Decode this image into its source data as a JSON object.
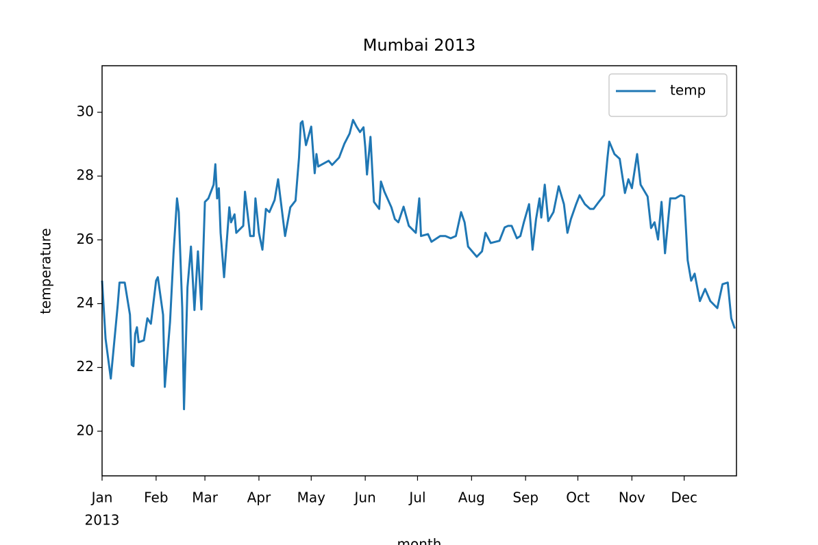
{
  "chart_data": {
    "type": "line",
    "title": "Mumbai 2013",
    "xlabel": "month",
    "ylabel": "temperature",
    "year_label": "2013",
    "x": [
      0,
      2,
      5,
      9,
      10,
      13,
      16,
      17,
      18,
      19,
      20,
      21,
      24,
      26,
      28,
      31,
      32,
      35,
      36,
      39,
      41,
      43,
      44,
      46,
      47,
      49,
      51,
      53,
      55,
      57,
      59,
      61,
      64,
      65,
      66,
      67,
      68,
      70,
      73,
      74,
      76,
      77,
      81,
      82,
      85,
      87,
      88,
      90,
      92,
      94,
      96,
      99,
      101,
      105,
      108,
      111,
      113,
      114,
      115,
      117,
      120,
      122,
      123,
      124,
      130,
      132,
      136,
      139,
      142,
      144,
      146,
      148,
      150,
      151,
      152,
      154,
      156,
      159,
      160,
      162,
      166,
      168,
      170,
      173,
      176,
      180,
      182,
      183,
      187,
      189,
      194,
      197,
      200,
      203,
      206,
      208,
      210,
      215,
      218,
      220,
      223,
      228,
      231,
      233,
      235,
      238,
      240,
      242,
      245,
      247,
      249,
      251,
      252,
      254,
      256,
      259,
      262,
      265,
      267,
      269,
      272,
      274,
      277,
      280,
      282,
      285,
      288,
      290,
      291,
      294,
      297,
      300,
      302,
      304,
      307,
      309,
      313,
      315,
      317,
      319,
      321,
      323,
      326,
      329,
      332,
      334,
      336,
      338,
      340,
      343,
      346,
      349,
      353,
      356,
      359,
      361,
      363
    ],
    "series": [
      {
        "name": "temp",
        "color": "#1f77b4",
        "values": [
          24.72,
          22.9,
          21.65,
          23.97,
          24.66,
          24.66,
          23.65,
          22.08,
          22.04,
          23.05,
          23.26,
          22.79,
          22.85,
          23.54,
          23.37,
          24.72,
          24.83,
          23.65,
          21.39,
          23.43,
          25.58,
          27.3,
          26.87,
          23.86,
          20.69,
          24.51,
          25.79,
          23.8,
          25.64,
          23.82,
          27.19,
          27.3,
          27.73,
          28.37,
          27.3,
          27.62,
          26.22,
          24.83,
          27.02,
          26.55,
          26.8,
          26.22,
          26.44,
          27.51,
          26.12,
          26.12,
          27.3,
          26.22,
          25.69,
          26.97,
          26.87,
          27.25,
          27.9,
          26.12,
          27.02,
          27.23,
          28.58,
          29.66,
          29.72,
          28.97,
          29.55,
          28.09,
          28.69,
          28.3,
          28.48,
          28.35,
          28.58,
          29.01,
          29.33,
          29.76,
          29.55,
          29.38,
          29.53,
          28.91,
          28.05,
          29.23,
          27.19,
          26.97,
          27.83,
          27.51,
          27.02,
          26.65,
          26.55,
          27.04,
          26.44,
          26.22,
          27.3,
          26.12,
          26.18,
          25.94,
          26.12,
          26.12,
          26.05,
          26.12,
          26.87,
          26.55,
          25.79,
          25.47,
          25.64,
          26.22,
          25.9,
          25.97,
          26.39,
          26.44,
          26.44,
          26.05,
          26.12,
          26.55,
          27.12,
          25.69,
          26.65,
          27.3,
          26.7,
          27.73,
          26.59,
          26.87,
          27.68,
          27.12,
          26.22,
          26.65,
          27.12,
          27.4,
          27.12,
          26.97,
          26.97,
          27.19,
          27.4,
          28.58,
          29.08,
          28.69,
          28.54,
          27.47,
          27.9,
          27.62,
          28.69,
          27.73,
          27.36,
          26.37,
          26.55,
          26.01,
          27.19,
          25.58,
          27.3,
          27.3,
          27.4,
          27.36,
          25.36,
          24.72,
          24.94,
          24.08,
          24.46,
          24.08,
          23.86,
          24.61,
          24.66,
          23.54,
          23.22
        ]
      }
    ],
    "xlim": [
      0,
      364
    ],
    "xticks": [
      {
        "value": 0,
        "label": "Jan"
      },
      {
        "value": 31,
        "label": "Feb"
      },
      {
        "value": 59,
        "label": "Mar"
      },
      {
        "value": 90,
        "label": "Apr"
      },
      {
        "value": 120,
        "label": "May"
      },
      {
        "value": 151,
        "label": "Jun"
      },
      {
        "value": 181,
        "label": "Jul"
      },
      {
        "value": 212,
        "label": "Aug"
      },
      {
        "value": 243,
        "label": "Sep"
      },
      {
        "value": 273,
        "label": "Oct"
      },
      {
        "value": 304,
        "label": "Nov"
      },
      {
        "value": 334,
        "label": "Dec"
      }
    ],
    "ylim": [
      18.6,
      31.46
    ],
    "yticks": [
      20,
      22,
      24,
      26,
      28,
      30
    ],
    "legend": "upper right"
  }
}
